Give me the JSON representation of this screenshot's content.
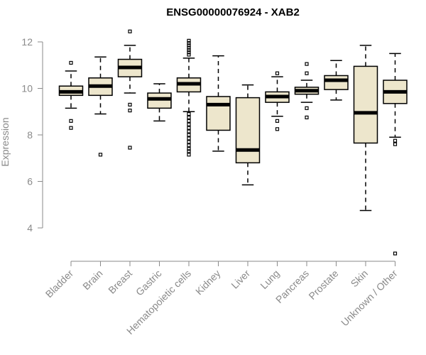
{
  "chart_data": {
    "type": "box",
    "title": "ENSG00000076924 - XAB2",
    "xlabel": "",
    "ylabel": "Expression",
    "ylim": [
      3,
      12.6
    ],
    "yticks": [
      4,
      6,
      8,
      10,
      12
    ],
    "categories": [
      "Bladder",
      "Brain",
      "Breast",
      "Gastric",
      "Hematopoietic cells",
      "Kidney",
      "Liver",
      "Lung",
      "Pancreas",
      "Prostate",
      "Skin",
      "Unknown / Other"
    ],
    "boxes": [
      {
        "category": "Bladder",
        "min": 9.15,
        "q1": 9.7,
        "median": 9.85,
        "q3": 10.1,
        "max": 10.75,
        "outliers": [
          11.1,
          8.6,
          8.3
        ]
      },
      {
        "category": "Brain",
        "min": 8.9,
        "q1": 9.7,
        "median": 10.1,
        "q3": 10.45,
        "max": 11.35,
        "outliers": [
          7.15
        ]
      },
      {
        "category": "Breast",
        "min": 9.8,
        "q1": 10.5,
        "median": 10.9,
        "q3": 11.25,
        "max": 11.85,
        "outliers": [
          12.45,
          9.3,
          9.05,
          7.45
        ]
      },
      {
        "category": "Gastric",
        "min": 8.6,
        "q1": 9.15,
        "median": 9.55,
        "q3": 9.8,
        "max": 10.2,
        "outliers": []
      },
      {
        "category": "Hematopoietic cells",
        "min": 9.0,
        "q1": 9.85,
        "median": 10.2,
        "q3": 10.45,
        "max": 11.3,
        "outliers": [
          12.05,
          11.95,
          11.85,
          11.75,
          11.65,
          11.55,
          11.45,
          8.9,
          8.75,
          8.6,
          8.45,
          8.3,
          8.15,
          8.0,
          7.85,
          7.7,
          7.55,
          7.4,
          7.3,
          7.15
        ]
      },
      {
        "category": "Kidney",
        "min": 7.3,
        "q1": 8.2,
        "median": 9.3,
        "q3": 9.65,
        "max": 11.4,
        "outliers": []
      },
      {
        "category": "Liver",
        "min": 5.85,
        "q1": 6.8,
        "median": 7.35,
        "q3": 9.6,
        "max": 10.15,
        "outliers": []
      },
      {
        "category": "Lung",
        "min": 8.8,
        "q1": 9.4,
        "median": 9.65,
        "q3": 9.85,
        "max": 10.5,
        "outliers": [
          10.65,
          8.6,
          8.25
        ]
      },
      {
        "category": "Pancreas",
        "min": 9.4,
        "q1": 9.75,
        "median": 9.9,
        "q3": 10.05,
        "max": 10.35,
        "outliers": [
          11.05,
          10.65,
          9.15,
          8.75
        ]
      },
      {
        "category": "Prostate",
        "min": 9.5,
        "q1": 9.95,
        "median": 10.35,
        "q3": 10.55,
        "max": 11.2,
        "outliers": []
      },
      {
        "category": "Skin",
        "min": 4.75,
        "q1": 7.65,
        "median": 8.95,
        "q3": 10.95,
        "max": 11.85,
        "outliers": []
      },
      {
        "category": "Unknown / Other",
        "min": 7.9,
        "q1": 9.35,
        "median": 9.85,
        "q3": 10.35,
        "max": 11.5,
        "outliers": [
          7.75,
          7.6,
          2.9
        ]
      }
    ],
    "box_color": "#ede6cc",
    "grid": false,
    "legend": "none"
  }
}
